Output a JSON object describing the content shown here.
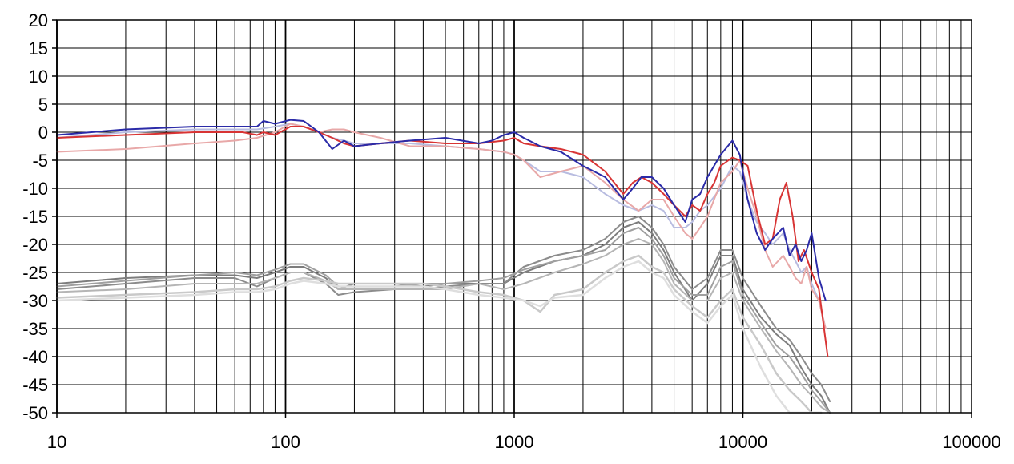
{
  "chart_data": {
    "type": "line",
    "title": "",
    "xlabel": "",
    "ylabel": "",
    "xscale": "log",
    "xlim": [
      10,
      100000
    ],
    "ylim": [
      -50,
      20
    ],
    "grid": true,
    "x_ticks": [
      "10",
      "100",
      "1000",
      "10000",
      "100000"
    ],
    "y_ticks": [
      "20",
      "15",
      "10",
      "5",
      "0",
      "-5",
      "-10",
      "-15",
      "-20",
      "-25",
      "-30",
      "-35",
      "-40",
      "-45",
      "-50"
    ],
    "series": [
      {
        "color": "#2b2ba8",
        "width": 2,
        "x": [
          10,
          20,
          40,
          65,
          75,
          80,
          90,
          105,
          120,
          140,
          160,
          180,
          200,
          260,
          350,
          500,
          700,
          800,
          900,
          1000,
          1100,
          1300,
          1600,
          2000,
          2500,
          3000,
          3300,
          3600,
          4000,
          4500,
          5000,
          5600,
          6000,
          6500,
          7000,
          8000,
          9000,
          9700,
          10500,
          11500,
          12500,
          13500,
          15000,
          16000,
          17000,
          18000,
          19000,
          20000,
          21500,
          23000
        ],
        "y": [
          -0.5,
          0.5,
          1,
          1,
          1,
          2,
          1.5,
          2.2,
          2,
          0,
          -3,
          -1.5,
          -2.5,
          -2,
          -1.5,
          -1,
          -2,
          -1.5,
          -0.5,
          0,
          -1,
          -2.5,
          -3.5,
          -6,
          -8,
          -12,
          -10,
          -8,
          -8,
          -10,
          -13,
          -16,
          -12,
          -11,
          -8,
          -4,
          -1.5,
          -4,
          -12,
          -18,
          -21,
          -19,
          -17,
          -22,
          -20,
          -23,
          -21,
          -18,
          -26,
          -30
        ]
      },
      {
        "color": "#d83434",
        "width": 2,
        "x": [
          10,
          20,
          40,
          65,
          75,
          80,
          90,
          105,
          120,
          140,
          160,
          180,
          200,
          260,
          350,
          500,
          700,
          900,
          1000,
          1100,
          1300,
          1600,
          2000,
          2500,
          3000,
          3300,
          3600,
          4000,
          4500,
          5000,
          5600,
          6000,
          6500,
          7000,
          7500,
          8000,
          9000,
          9700,
          10500,
          11500,
          12500,
          13500,
          14500,
          15500,
          16500,
          17500,
          18500,
          20000,
          21500,
          23500
        ],
        "y": [
          -1,
          -0.5,
          0,
          0,
          -0.5,
          0,
          -0.5,
          1,
          1,
          0,
          -1,
          -2,
          -2.5,
          -2,
          -1.5,
          -2,
          -2,
          -1.5,
          -1,
          -2,
          -2.5,
          -3,
          -4,
          -7,
          -11,
          -9,
          -8,
          -9,
          -11,
          -13,
          -15,
          -13,
          -14,
          -11,
          -9,
          -6,
          -4.5,
          -5,
          -6,
          -14,
          -20,
          -19,
          -12,
          -9,
          -15,
          -23,
          -21,
          -25,
          -28,
          -40
        ]
      },
      {
        "color": "#e8a8a8",
        "width": 2,
        "x": [
          10,
          20,
          40,
          60,
          75,
          90,
          105,
          120,
          140,
          160,
          180,
          200,
          260,
          350,
          500,
          700,
          900,
          1000,
          1100,
          1300,
          1600,
          2000,
          2500,
          3000,
          3500,
          4000,
          4500,
          5000,
          5600,
          6000,
          6500,
          7000,
          8000,
          9000,
          9700,
          10500,
          11500,
          12500,
          13500,
          15000,
          16000,
          17000,
          18000,
          19000,
          20000,
          21500,
          23000
        ],
        "y": [
          -3.5,
          -3,
          -2,
          -1.5,
          -1,
          0,
          1.5,
          1,
          0,
          0.5,
          0.5,
          0,
          -1,
          -2.5,
          -2.5,
          -3,
          -3.5,
          -4,
          -5,
          -8,
          -7,
          -6,
          -9,
          -12,
          -14,
          -12,
          -12,
          -15,
          -18,
          -19,
          -17,
          -15,
          -9,
          -7,
          -5,
          -10,
          -15,
          -21,
          -24,
          -22,
          -24,
          -26,
          -27,
          -24,
          -28,
          -30,
          -35
        ]
      },
      {
        "color": "#b8bce0",
        "width": 2,
        "x": [
          10,
          20,
          40,
          60,
          75,
          90,
          105,
          120,
          140,
          160,
          180,
          200,
          260,
          350,
          500,
          700,
          900,
          1000,
          1100,
          1300,
          1600,
          2000,
          2500,
          3000,
          3500,
          4000,
          4500,
          5000,
          5600,
          6000,
          6500,
          7000,
          8000,
          9000,
          9700,
          10500,
          11500,
          12500,
          13500,
          15000,
          16000,
          17000,
          18000,
          19000,
          20000,
          21500,
          23000
        ],
        "y": [
          -1,
          0,
          0.5,
          0.5,
          0.5,
          1,
          1.5,
          1,
          0,
          -1,
          -1.5,
          -2,
          -2,
          -2,
          -2.5,
          -3,
          -3.5,
          -4,
          -5,
          -7,
          -7,
          -8,
          -11,
          -13,
          -14,
          -13,
          -14,
          -17,
          -17,
          -16,
          -14,
          -13,
          -10,
          -6,
          -7,
          -12,
          -16,
          -18,
          -20,
          -18,
          -21,
          -23,
          -25,
          -24,
          -27,
          -30,
          -35
        ]
      },
      {
        "color": "#7d7d7d",
        "width": 2,
        "x": [
          10,
          20,
          40,
          60,
          75,
          90,
          105,
          120,
          150,
          170,
          200,
          300,
          400,
          500,
          700,
          900,
          1100,
          1500,
          2000,
          2500,
          3000,
          3500,
          4000,
          4500,
          5000,
          6000,
          7000,
          8000,
          9000,
          10000,
          12000,
          14000,
          16000,
          18000,
          20000,
          22000,
          24000
        ],
        "y": [
          -27,
          -26,
          -25.5,
          -25.5,
          -26,
          -25,
          -24,
          -24,
          -26,
          -28,
          -27,
          -27,
          -27.5,
          -27,
          -27,
          -27,
          -25,
          -23,
          -22,
          -20,
          -17,
          -16,
          -18,
          -21,
          -25,
          -30,
          -27,
          -22,
          -22,
          -28,
          -33,
          -36,
          -38,
          -42,
          -45,
          -47,
          -50
        ]
      },
      {
        "color": "#8c8c8c",
        "width": 2,
        "x": [
          10,
          20,
          40,
          60,
          75,
          90,
          105,
          120,
          150,
          170,
          200,
          300,
          400,
          500,
          700,
          900,
          1100,
          1500,
          2000,
          2500,
          3000,
          3500,
          4000,
          4500,
          5000,
          6000,
          7000,
          8000,
          9000,
          10000,
          12000,
          14000,
          16000,
          18000,
          20000,
          22000,
          24000
        ],
        "y": [
          -28,
          -27,
          -26,
          -26,
          -27.5,
          -26,
          -25,
          -25,
          -27,
          -29,
          -28.5,
          -28,
          -28,
          -27.5,
          -27,
          -27,
          -24,
          -22,
          -21,
          -19,
          -16,
          -15,
          -17,
          -20,
          -24,
          -28,
          -26,
          -21,
          -21,
          -26,
          -31,
          -35,
          -37,
          -40,
          -43,
          -45,
          -48
        ]
      },
      {
        "color": "#a0a0a0",
        "width": 2,
        "x": [
          10,
          20,
          40,
          60,
          75,
          90,
          105,
          120,
          150,
          170,
          200,
          300,
          400,
          500,
          700,
          900,
          1100,
          1500,
          2000,
          2500,
          3000,
          3500,
          4000,
          4500,
          5000,
          6000,
          7000,
          8000,
          9000,
          10000,
          12000,
          14000,
          16000,
          18000,
          20000,
          22000,
          24000
        ],
        "y": [
          -27.5,
          -26.5,
          -25.5,
          -25,
          -25.5,
          -24.5,
          -23.5,
          -23.5,
          -25.5,
          -27.5,
          -27.5,
          -27.5,
          -27,
          -27,
          -26.5,
          -26,
          -24.5,
          -23,
          -22,
          -21,
          -18,
          -17,
          -19,
          -22,
          -26,
          -29,
          -29,
          -24,
          -23,
          -29,
          -34,
          -38,
          -40,
          -43,
          -46,
          -48,
          -50
        ]
      },
      {
        "color": "#b5b5b5",
        "width": 2,
        "x": [
          10,
          20,
          40,
          60,
          75,
          90,
          105,
          120,
          150,
          170,
          200,
          300,
          400,
          500,
          700,
          900,
          1100,
          1500,
          2000,
          2500,
          3000,
          3500,
          4000,
          4500,
          5000,
          6000,
          7000,
          8000,
          9000,
          10000,
          12000,
          14000,
          16000,
          18000,
          20000,
          22000,
          24000
        ],
        "y": [
          -28.5,
          -28,
          -27,
          -27,
          -27,
          -26,
          -25,
          -25,
          -26.5,
          -28,
          -28,
          -28,
          -28,
          -28,
          -27,
          -28,
          -27,
          -25,
          -23.5,
          -22,
          -20,
          -19,
          -20,
          -23,
          -27,
          -30,
          -30,
          -26,
          -25,
          -30,
          -35,
          -39,
          -42,
          -45,
          -47,
          -49,
          -50
        ]
      },
      {
        "color": "#c9c9c9",
        "width": 2.5,
        "x": [
          10,
          20,
          40,
          60,
          75,
          90,
          105,
          120,
          150,
          170,
          200,
          300,
          400,
          500,
          700,
          900,
          1100,
          1300,
          1500,
          2000,
          2500,
          3000,
          3500,
          4000,
          4500,
          5000,
          6000,
          7000,
          8000,
          9000,
          10000,
          12000,
          14000,
          16000,
          18000,
          20000,
          22000
        ],
        "y": [
          -29.5,
          -29,
          -28.5,
          -28,
          -28,
          -27.5,
          -26.5,
          -26,
          -26.5,
          -27,
          -27,
          -27,
          -27,
          -27.5,
          -28.5,
          -29,
          -30,
          -32,
          -29,
          -28,
          -25,
          -23,
          -22,
          -24,
          -25,
          -28,
          -31,
          -33,
          -30,
          -28,
          -33,
          -38,
          -43,
          -46,
          -48,
          -50,
          -50
        ]
      },
      {
        "color": "#dedede",
        "width": 2.5,
        "x": [
          10,
          20,
          40,
          60,
          75,
          90,
          105,
          120,
          150,
          170,
          200,
          300,
          400,
          500,
          700,
          900,
          1100,
          1300,
          1500,
          2000,
          2500,
          3000,
          3500,
          4000,
          4500,
          5000,
          6000,
          7000,
          8000,
          9000,
          10000,
          12000,
          14000,
          16000,
          18000,
          20000
        ],
        "y": [
          -30,
          -29.5,
          -29,
          -28.5,
          -28.5,
          -28,
          -27,
          -26.5,
          -27,
          -27.5,
          -27.5,
          -27.5,
          -27.5,
          -28,
          -29,
          -29.5,
          -30,
          -31,
          -29.5,
          -29,
          -26,
          -24,
          -23,
          -25,
          -26,
          -29,
          -32,
          -34,
          -31,
          -29,
          -35,
          -42,
          -47,
          -50,
          -50,
          -50
        ]
      }
    ]
  }
}
